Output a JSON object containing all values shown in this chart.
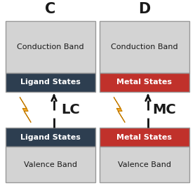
{
  "title_C": "C",
  "title_D": "D",
  "label_LC": "LC",
  "label_MC": "MC",
  "conduction_band_text": "Conduction Band",
  "valence_band_text": "Valence Band",
  "ligand_states_text": "Ligand States",
  "metal_states_text": "Metal States",
  "conduction_band_color": "#d3d3d3",
  "valence_band_color": "#d3d3d3",
  "ligand_states_color": "#2d3e50",
  "metal_states_color": "#c0312b",
  "background_color": "#ffffff",
  "border_color": "#999999",
  "white_text": "#ffffff",
  "black_text": "#1a1a1a",
  "arrow_color": "#111111",
  "lightning_color": "#f5a623",
  "lightning_edge": "#c47d00",
  "fig_width": 2.78,
  "fig_height": 2.78,
  "dpi": 100
}
